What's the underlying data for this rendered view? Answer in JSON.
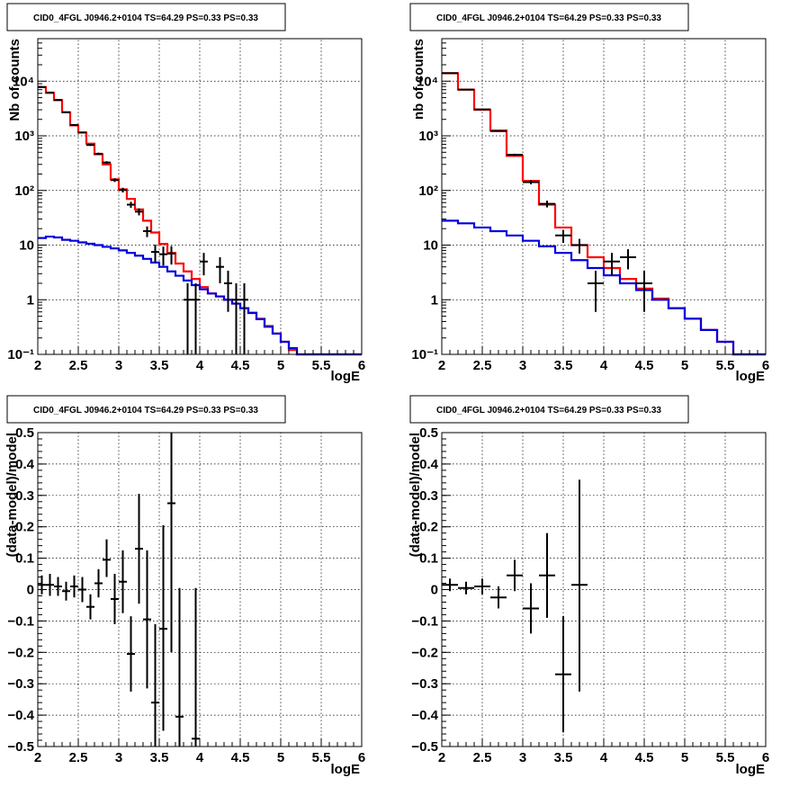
{
  "colors": {
    "model_total": "#ff0000",
    "model_background": "#0000dd",
    "data": "#000000",
    "grid": "#000000"
  },
  "chart_data": [
    {
      "id": "top-left",
      "type": "line",
      "title": "CID0_4FGL J0946.2+0104 TS=64.29 PS=0.33 PS=0.33",
      "xlabel": "logE",
      "ylabel": "Nb of counts",
      "xlim": [
        2,
        6
      ],
      "ylim": [
        0.1,
        60000
      ],
      "yscale": "log",
      "grid": true,
      "xticks": [
        "2",
        "2.5",
        "3",
        "3.5",
        "4",
        "4.5",
        "5",
        "5.5",
        "6"
      ],
      "yticks": [
        {
          "value": 0.1,
          "label": "10⁻¹"
        },
        {
          "value": 1,
          "label": "1"
        },
        {
          "value": 10,
          "label": "10"
        },
        {
          "value": 100,
          "label": "10²"
        },
        {
          "value": 1000,
          "label": "10³"
        },
        {
          "value": 10000,
          "label": "10⁴"
        }
      ],
      "bin_edges": [
        2.0,
        2.1,
        2.2,
        2.3,
        2.4,
        2.5,
        2.6,
        2.7,
        2.8,
        2.9,
        3.0,
        3.1,
        3.2,
        3.3,
        3.4,
        3.5,
        3.6,
        3.7,
        3.8,
        3.9,
        4.0,
        4.1,
        4.2,
        4.3,
        4.4,
        4.5,
        4.6,
        4.7,
        4.8,
        4.9,
        5.0,
        5.1,
        5.2,
        5.3,
        5.4,
        5.5,
        5.6,
        5.7,
        5.8,
        5.9,
        6.0
      ],
      "series": [
        {
          "name": "",
          "kind": "step",
          "role": "total-model",
          "values": [
            7800,
            6100,
            4500,
            2700,
            1550,
            1150,
            720,
            460,
            300,
            160,
            105,
            70,
            45,
            28,
            17,
            10.5,
            7.2,
            4.6,
            3.3,
            2.4,
            1.7,
            1.3,
            1.15,
            1.0,
            0.85,
            0.7,
            0.58,
            0.45,
            0.33,
            0.24,
            0.17,
            0.12,
            0.1,
            0.1,
            0.1,
            0.1,
            0.1,
            0.1,
            0.1,
            0.1
          ]
        },
        {
          "name": "",
          "kind": "step",
          "role": "background-model",
          "values": [
            13.5,
            14.3,
            13.8,
            12.5,
            12.0,
            11.2,
            10.6,
            10.0,
            9.3,
            8.7,
            8.0,
            7.2,
            6.4,
            5.6,
            4.8,
            4.0,
            3.3,
            2.75,
            2.25,
            1.85,
            1.55,
            1.3,
            1.15,
            1.0,
            0.85,
            0.7,
            0.57,
            0.44,
            0.32,
            0.24,
            0.17,
            0.13,
            0.1,
            0.1,
            0.1,
            0.1,
            0.1,
            0.1,
            0.1,
            0.1
          ]
        },
        {
          "name": "",
          "kind": "errorbar",
          "role": "data",
          "points": [
            {
              "x": 2.05,
              "y": 7800,
              "lo": 7712,
              "hi": 7888
            },
            {
              "x": 2.15,
              "y": 6200,
              "lo": 6121,
              "hi": 6279
            },
            {
              "x": 2.25,
              "y": 4550,
              "lo": 4483,
              "hi": 4617
            },
            {
              "x": 2.35,
              "y": 2700,
              "lo": 2648,
              "hi": 2752
            },
            {
              "x": 2.45,
              "y": 1580,
              "lo": 1540,
              "hi": 1620
            },
            {
              "x": 2.55,
              "y": 1150,
              "lo": 1116,
              "hi": 1184
            },
            {
              "x": 2.65,
              "y": 680,
              "lo": 654,
              "hi": 706
            },
            {
              "x": 2.75,
              "y": 470,
              "lo": 448,
              "hi": 492
            },
            {
              "x": 2.85,
              "y": 325,
              "lo": 307,
              "hi": 343
            },
            {
              "x": 2.95,
              "y": 155,
              "lo": 143,
              "hi": 167
            },
            {
              "x": 3.05,
              "y": 102,
              "lo": 92,
              "hi": 112
            },
            {
              "x": 3.15,
              "y": 55,
              "lo": 48,
              "hi": 62
            },
            {
              "x": 3.25,
              "y": 41,
              "lo": 35,
              "hi": 47
            },
            {
              "x": 3.35,
              "y": 18,
              "lo": 14,
              "hi": 22
            },
            {
              "x": 3.45,
              "y": 7.5,
              "lo": 4.8,
              "hi": 10.2
            },
            {
              "x": 3.55,
              "y": 6.8,
              "lo": 4.2,
              "hi": 9.4
            },
            {
              "x": 3.65,
              "y": 7.0,
              "lo": 4.4,
              "hi": 9.6
            },
            {
              "x": 3.85,
              "y": 1.0,
              "lo": 0.1,
              "hi": 2.0
            },
            {
              "x": 3.95,
              "y": 1.0,
              "lo": 0.1,
              "hi": 2.0
            },
            {
              "x": 4.05,
              "y": 5.0,
              "lo": 2.8,
              "hi": 7.2
            },
            {
              "x": 4.25,
              "y": 4.0,
              "lo": 2.0,
              "hi": 6.0
            },
            {
              "x": 4.35,
              "y": 2.0,
              "lo": 0.6,
              "hi": 3.4
            },
            {
              "x": 4.45,
              "y": 1.0,
              "lo": 0.1,
              "hi": 2.0
            },
            {
              "x": 4.55,
              "y": 1.0,
              "lo": 0.1,
              "hi": 2.0
            }
          ]
        }
      ]
    },
    {
      "id": "top-right",
      "type": "line",
      "title": "CID0_4FGL J0946.2+0104 TS=64.29 PS=0.33 PS=0.33",
      "xlabel": "logE",
      "ylabel": "nb of counts",
      "xlim": [
        2,
        6
      ],
      "ylim": [
        0.1,
        60000
      ],
      "yscale": "log",
      "grid": true,
      "xticks": [
        "2",
        "2.5",
        "3",
        "3.5",
        "4",
        "4.5",
        "5",
        "5.5",
        "6"
      ],
      "yticks": [
        {
          "value": 0.1,
          "label": "10⁻¹"
        },
        {
          "value": 1,
          "label": "1"
        },
        {
          "value": 10,
          "label": "10"
        },
        {
          "value": 100,
          "label": "10²"
        },
        {
          "value": 1000,
          "label": "10³"
        },
        {
          "value": 10000,
          "label": "10⁴"
        }
      ],
      "bin_edges": [
        2.0,
        2.2,
        2.4,
        2.6,
        2.8,
        3.0,
        3.2,
        3.4,
        3.6,
        3.8,
        4.0,
        4.2,
        4.4,
        4.6,
        4.8,
        5.0,
        5.2,
        5.4,
        5.6,
        5.8,
        6.0
      ],
      "series": [
        {
          "name": "",
          "kind": "step",
          "role": "total-model",
          "values": [
            14000,
            7000,
            3000,
            1250,
            430,
            150,
            55,
            21,
            10,
            6.0,
            3.8,
            2.4,
            1.6,
            1.05,
            0.7,
            0.45,
            0.28,
            0.17,
            0.1,
            0.1
          ]
        },
        {
          "name": "",
          "kind": "step",
          "role": "background-model",
          "values": [
            28,
            25,
            21,
            18,
            15,
            12,
            9.5,
            7.2,
            5.3,
            3.8,
            2.8,
            2.0,
            1.5,
            1.0,
            0.7,
            0.45,
            0.28,
            0.17,
            0.1,
            0.1
          ]
        },
        {
          "name": "",
          "kind": "errorbar",
          "role": "data",
          "points": [
            {
              "x": 2.1,
              "y": 14000,
              "lo": 13880,
              "hi": 14120
            },
            {
              "x": 2.3,
              "y": 7000,
              "lo": 6916,
              "hi": 7084
            },
            {
              "x": 2.5,
              "y": 3050,
              "lo": 2995,
              "hi": 3105
            },
            {
              "x": 2.7,
              "y": 1220,
              "lo": 1185,
              "hi": 1255
            },
            {
              "x": 2.9,
              "y": 450,
              "lo": 429,
              "hi": 471
            },
            {
              "x": 3.1,
              "y": 142,
              "lo": 130,
              "hi": 154
            },
            {
              "x": 3.3,
              "y": 57,
              "lo": 49,
              "hi": 65
            },
            {
              "x": 3.5,
              "y": 15,
              "lo": 11,
              "hi": 19
            },
            {
              "x": 3.7,
              "y": 10,
              "lo": 7,
              "hi": 13
            },
            {
              "x": 3.9,
              "y": 2.0,
              "lo": 0.6,
              "hi": 3.4
            },
            {
              "x": 4.1,
              "y": 5.0,
              "lo": 2.8,
              "hi": 7.2
            },
            {
              "x": 4.3,
              "y": 6.0,
              "lo": 3.6,
              "hi": 8.4
            },
            {
              "x": 4.5,
              "y": 2.0,
              "lo": 0.6,
              "hi": 3.4
            }
          ]
        }
      ]
    },
    {
      "id": "bottom-left",
      "type": "scatter",
      "title": "CID0_4FGL J0946.2+0104 TS=64.29 PS=0.33 PS=0.33",
      "xlabel": "logE",
      "ylabel": "(data-model)/model",
      "xlim": [
        2,
        6
      ],
      "ylim": [
        -0.5,
        0.5
      ],
      "yscale": "linear",
      "grid": true,
      "xticks": [
        "2",
        "2.5",
        "3",
        "3.5",
        "4",
        "4.5",
        "5",
        "5.5",
        "6"
      ],
      "yticks": [
        {
          "value": -0.5,
          "label": "−0.5"
        },
        {
          "value": -0.4,
          "label": "−0.4"
        },
        {
          "value": -0.3,
          "label": "−0.3"
        },
        {
          "value": -0.2,
          "label": "−0.2"
        },
        {
          "value": -0.1,
          "label": "−0.1"
        },
        {
          "value": 0,
          "label": "0"
        },
        {
          "value": 0.1,
          "label": "0.1"
        },
        {
          "value": 0.2,
          "label": "0.2"
        },
        {
          "value": 0.3,
          "label": "0.3"
        },
        {
          "value": 0.4,
          "label": "0.4"
        },
        {
          "value": 0.5,
          "label": "0.5"
        }
      ],
      "xhalf": 0.05,
      "series": [
        {
          "name": "",
          "kind": "errorbar",
          "role": "residual",
          "points": [
            {
              "x": 2.05,
              "y": 0.015,
              "lo": -0.015,
              "hi": 0.045
            },
            {
              "x": 2.15,
              "y": 0.015,
              "lo": -0.02,
              "hi": 0.05
            },
            {
              "x": 2.25,
              "y": 0.01,
              "lo": -0.02,
              "hi": 0.04
            },
            {
              "x": 2.35,
              "y": -0.005,
              "lo": -0.035,
              "hi": 0.025
            },
            {
              "x": 2.45,
              "y": 0.01,
              "lo": -0.025,
              "hi": 0.045
            },
            {
              "x": 2.55,
              "y": 0.0,
              "lo": -0.04,
              "hi": 0.04
            },
            {
              "x": 2.65,
              "y": -0.055,
              "lo": -0.095,
              "hi": -0.015
            },
            {
              "x": 2.75,
              "y": 0.02,
              "lo": -0.025,
              "hi": 0.065
            },
            {
              "x": 2.85,
              "y": 0.095,
              "lo": 0.04,
              "hi": 0.16
            },
            {
              "x": 2.95,
              "y": -0.03,
              "lo": -0.11,
              "hi": 0.05
            },
            {
              "x": 3.05,
              "y": 0.025,
              "lo": -0.075,
              "hi": 0.125
            },
            {
              "x": 3.15,
              "y": -0.205,
              "lo": -0.325,
              "hi": -0.085
            },
            {
              "x": 3.25,
              "y": 0.13,
              "lo": -0.045,
              "hi": 0.305
            },
            {
              "x": 3.35,
              "y": -0.095,
              "lo": -0.315,
              "hi": 0.125
            },
            {
              "x": 3.45,
              "y": -0.36,
              "lo": -0.5,
              "hi": -0.11
            },
            {
              "x": 3.55,
              "y": -0.125,
              "lo": -0.45,
              "hi": 0.205
            },
            {
              "x": 3.65,
              "y": 0.275,
              "lo": -0.2,
              "hi": 0.5
            },
            {
              "x": 3.75,
              "y": -0.405,
              "lo": -0.5,
              "hi": 0.005
            },
            {
              "x": 3.95,
              "y": -0.475,
              "lo": -0.5,
              "hi": 0.005
            }
          ]
        }
      ]
    },
    {
      "id": "bottom-right",
      "type": "scatter",
      "title": "CID0_4FGL J0946.2+0104 TS=64.29 PS=0.33 PS=0.33",
      "xlabel": "logE",
      "ylabel": "(data-model)/model",
      "xlim": [
        2,
        6
      ],
      "ylim": [
        -0.5,
        0.5
      ],
      "yscale": "linear",
      "grid": true,
      "xticks": [
        "2",
        "2.5",
        "3",
        "3.5",
        "4",
        "4.5",
        "5",
        "5.5",
        "6"
      ],
      "yticks": [
        {
          "value": -0.5,
          "label": "−0.5"
        },
        {
          "value": -0.4,
          "label": "−0.4"
        },
        {
          "value": -0.3,
          "label": "−0.3"
        },
        {
          "value": -0.2,
          "label": "−0.2"
        },
        {
          "value": -0.1,
          "label": "−0.1"
        },
        {
          "value": 0,
          "label": "0"
        },
        {
          "value": 0.1,
          "label": "0.1"
        },
        {
          "value": 0.2,
          "label": "0.2"
        },
        {
          "value": 0.3,
          "label": "0.3"
        },
        {
          "value": 0.4,
          "label": "0.4"
        },
        {
          "value": 0.5,
          "label": "0.5"
        }
      ],
      "xhalf": 0.1,
      "series": [
        {
          "name": "",
          "kind": "errorbar",
          "role": "residual",
          "points": [
            {
              "x": 2.1,
              "y": 0.015,
              "lo": -0.005,
              "hi": 0.035
            },
            {
              "x": 2.3,
              "y": 0.005,
              "lo": -0.015,
              "hi": 0.025
            },
            {
              "x": 2.5,
              "y": 0.01,
              "lo": -0.015,
              "hi": 0.035
            },
            {
              "x": 2.7,
              "y": -0.025,
              "lo": -0.06,
              "hi": 0.01
            },
            {
              "x": 2.9,
              "y": 0.045,
              "lo": -0.005,
              "hi": 0.095
            },
            {
              "x": 3.1,
              "y": -0.06,
              "lo": -0.14,
              "hi": 0.02
            },
            {
              "x": 3.3,
              "y": 0.045,
              "lo": -0.09,
              "hi": 0.18
            },
            {
              "x": 3.5,
              "y": -0.27,
              "lo": -0.455,
              "hi": -0.085
            },
            {
              "x": 3.7,
              "y": 0.015,
              "lo": -0.325,
              "hi": 0.35
            }
          ]
        }
      ]
    }
  ]
}
